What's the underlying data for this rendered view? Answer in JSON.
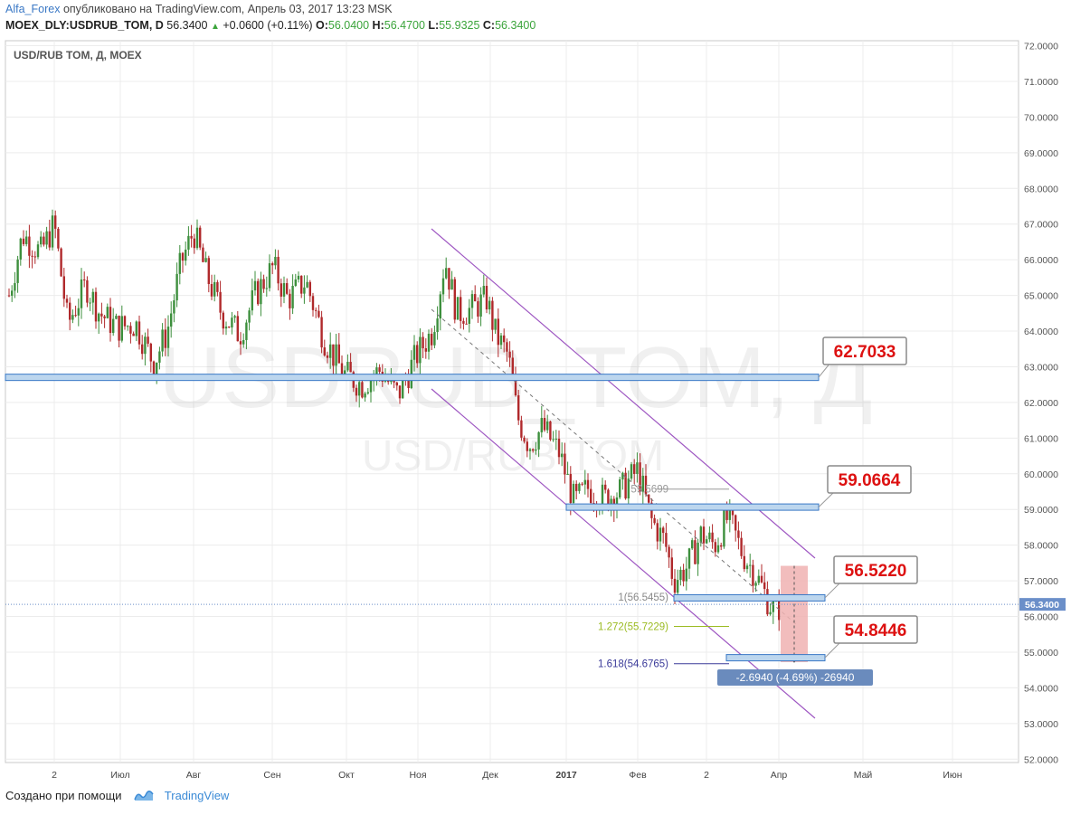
{
  "header": {
    "author": "Alfa_Forex",
    "published": "опубликовано на TradingView.com, Апрель 03, 2017 13:23 MSK",
    "symbol": "MOEX_DLY:USDRUB_TOM, D",
    "price": "56.3400",
    "change": "+0.0600 (+0.11%)",
    "o_label": "O:",
    "o_value": "56.0400",
    "h_label": "H:",
    "h_value": "56.4700",
    "l_label": "L:",
    "l_value": "55.9325",
    "c_label": "C:",
    "c_value": "56.3400"
  },
  "chart_data": {
    "type": "candlestick",
    "title": "USD/RUB TOM, Д, MOEX",
    "watermark_main": "USDRUB_TOM, Д",
    "watermark_sub": "USD/RUB TOM",
    "x_labels": [
      "2",
      "Июл",
      "Авг",
      "Сен",
      "Окт",
      "Ноя",
      "Дек",
      "2017",
      "Фев",
      "2",
      "Апр",
      "Май",
      "Июн"
    ],
    "y_ticks": [
      "72.0000",
      "71.0000",
      "70.0000",
      "69.0000",
      "68.0000",
      "67.0000",
      "66.0000",
      "65.0000",
      "64.0000",
      "63.0000",
      "62.0000",
      "61.0000",
      "60.0000",
      "59.0000",
      "58.0000",
      "57.0000",
      "56.0000",
      "55.0000",
      "54.0000",
      "53.0000",
      "52.0000"
    ],
    "ylim": [
      51.8,
      72.3
    ],
    "last_price": "56.3400",
    "levels": [
      {
        "label": "62.7033",
        "value": 62.7033
      },
      {
        "label": "59.0664",
        "value": 59.0664
      },
      {
        "label": "56.5220",
        "value": 56.522
      },
      {
        "label": "54.8446",
        "value": 54.8446
      }
    ],
    "fib_labels": [
      {
        "label": "59.5699",
        "color": "#999999"
      },
      {
        "label": "1(56.5455)",
        "color": "#888888"
      },
      {
        "label": "1.272(55.7229)",
        "color": "#9bbb22"
      },
      {
        "label": "1.618(54.6765)",
        "color": "#3a3a99"
      }
    ],
    "measure_label": "-2.6940 (-4.69%) -26940",
    "grid": true,
    "colors": {
      "up": "#3d8f3d",
      "down": "#b0292b",
      "channel": "#9e57c2",
      "level_fill": "#bcd6ee",
      "level_stroke": "#3978c5",
      "measure": "#f0b2b2",
      "label_text": "#dd1111"
    }
  },
  "footer": {
    "created_with": "Создано при помощи",
    "brand": "TradingView"
  }
}
